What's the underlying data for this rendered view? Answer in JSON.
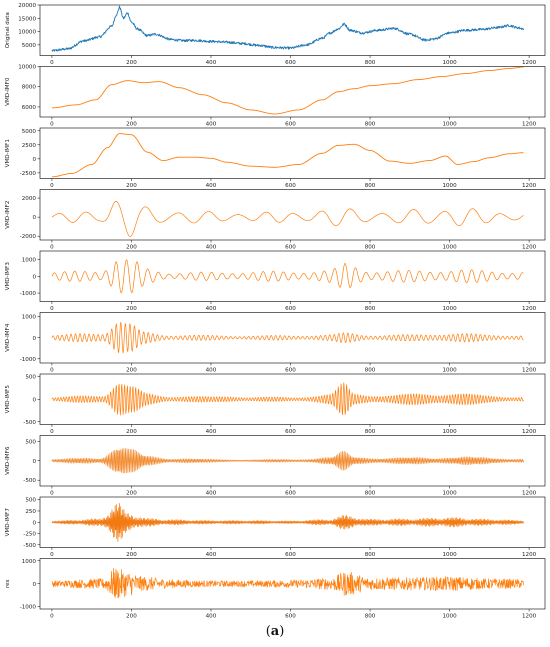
{
  "figure": {
    "caption_open": "(",
    "caption_letter": "a",
    "caption_close": ")"
  },
  "colors": {
    "original": "#1f77b4",
    "imf": "#ff7f0e",
    "imf_dark": "#e8741a"
  },
  "chart_data": [
    {
      "type": "line",
      "ylabel": "Original data",
      "xlim": [
        -30,
        1240
      ],
      "ylim": [
        1000,
        20000
      ],
      "yticks": [
        5000,
        10000,
        15000,
        20000
      ],
      "xticks": [
        0,
        200,
        400,
        600,
        800,
        1000,
        1200
      ],
      "series": [
        {
          "color": "#1f77b4",
          "kind": "trend",
          "points": [
            [
              0,
              2800
            ],
            [
              40,
              3500
            ],
            [
              80,
              6500
            ],
            [
              120,
              8000
            ],
            [
              150,
              12000
            ],
            [
              163,
              16500
            ],
            [
              170,
              19200
            ],
            [
              180,
              15000
            ],
            [
              190,
              17000
            ],
            [
              200,
              13500
            ],
            [
              215,
              11000
            ],
            [
              240,
              8500
            ],
            [
              260,
              9000
            ],
            [
              300,
              7000
            ],
            [
              330,
              6600
            ],
            [
              360,
              6700
            ],
            [
              400,
              6300
            ],
            [
              440,
              6000
            ],
            [
              480,
              5500
            ],
            [
              520,
              4800
            ],
            [
              560,
              4000
            ],
            [
              600,
              3800
            ],
            [
              640,
              5000
            ],
            [
              680,
              7500
            ],
            [
              700,
              9500
            ],
            [
              720,
              11000
            ],
            [
              735,
              12800
            ],
            [
              750,
              10500
            ],
            [
              780,
              9500
            ],
            [
              820,
              10500
            ],
            [
              860,
              11200
            ],
            [
              900,
              9000
            ],
            [
              940,
              6800
            ],
            [
              960,
              7200
            ],
            [
              1000,
              9500
            ],
            [
              1040,
              10500
            ],
            [
              1080,
              10800
            ],
            [
              1120,
              11500
            ],
            [
              1150,
              12300
            ],
            [
              1170,
              11500
            ],
            [
              1186,
              11000
            ]
          ],
          "noise": 450
        }
      ]
    },
    {
      "type": "line",
      "ylabel": "VMD-IMF0",
      "xlim": [
        -30,
        1240
      ],
      "ylim": [
        5000,
        10000
      ],
      "yticks": [
        6000,
        8000,
        10000
      ],
      "xticks": [
        0,
        200,
        400,
        600,
        800,
        1000,
        1200
      ],
      "series": [
        {
          "color": "#ff7f0e",
          "kind": "trend",
          "points": [
            [
              0,
              5900
            ],
            [
              60,
              6200
            ],
            [
              110,
              6700
            ],
            [
              150,
              8200
            ],
            [
              190,
              8600
            ],
            [
              230,
              8400
            ],
            [
              270,
              8500
            ],
            [
              320,
              7900
            ],
            [
              380,
              7200
            ],
            [
              440,
              6400
            ],
            [
              500,
              5700
            ],
            [
              560,
              5300
            ],
            [
              620,
              5700
            ],
            [
              680,
              6700
            ],
            [
              720,
              7500
            ],
            [
              760,
              7800
            ],
            [
              800,
              8100
            ],
            [
              860,
              8300
            ],
            [
              920,
              8700
            ],
            [
              980,
              9000
            ],
            [
              1040,
              9300
            ],
            [
              1100,
              9600
            ],
            [
              1150,
              9800
            ],
            [
              1186,
              9950
            ]
          ],
          "noise": 0
        }
      ]
    },
    {
      "type": "line",
      "ylabel": "VMD-IMF1",
      "xlim": [
        -30,
        1240
      ],
      "ylim": [
        -3500,
        5500
      ],
      "yticks": [
        -2500,
        0,
        2500,
        5000
      ],
      "xticks": [
        0,
        200,
        400,
        600,
        800,
        1000,
        1200
      ],
      "series": [
        {
          "color": "#ff7f0e",
          "kind": "trend",
          "points": [
            [
              0,
              -3200
            ],
            [
              50,
              -2600
            ],
            [
              100,
              -1000
            ],
            [
              140,
              2000
            ],
            [
              170,
              4500
            ],
            [
              200,
              4300
            ],
            [
              240,
              1200
            ],
            [
              280,
              -300
            ],
            [
              320,
              300
            ],
            [
              360,
              300
            ],
            [
              400,
              100
            ],
            [
              440,
              -600
            ],
            [
              500,
              -1300
            ],
            [
              560,
              -1500
            ],
            [
              620,
              -1000
            ],
            [
              680,
              1000
            ],
            [
              720,
              2400
            ],
            [
              760,
              2600
            ],
            [
              800,
              1500
            ],
            [
              850,
              -400
            ],
            [
              900,
              -800
            ],
            [
              950,
              -300
            ],
            [
              990,
              500
            ],
            [
              1020,
              -1000
            ],
            [
              1060,
              -500
            ],
            [
              1100,
              200
            ],
            [
              1150,
              900
            ],
            [
              1186,
              1100
            ]
          ],
          "noise": 0
        }
      ]
    },
    {
      "type": "line",
      "ylabel": "VMD-IMF2",
      "xlim": [
        -30,
        1240
      ],
      "ylim": [
        -2400,
        2900
      ],
      "yticks": [
        -2000,
        0,
        2000
      ],
      "xticks": [
        0,
        200,
        400,
        600,
        800,
        1000,
        1200
      ],
      "series": [
        {
          "color": "#ff7f0e",
          "kind": "osc",
          "freq": 0.085,
          "envelope": [
            [
              0,
              400
            ],
            [
              120,
              800
            ],
            [
              160,
              2500
            ],
            [
              190,
              2200
            ],
            [
              230,
              1200
            ],
            [
              300,
              800
            ],
            [
              400,
              600
            ],
            [
              500,
              500
            ],
            [
              600,
              600
            ],
            [
              700,
              900
            ],
            [
              750,
              1000
            ],
            [
              850,
              600
            ],
            [
              950,
              1000
            ],
            [
              1000,
              1200
            ],
            [
              1100,
              700
            ],
            [
              1186,
              500
            ]
          ]
        }
      ]
    },
    {
      "type": "line",
      "ylabel": "VMD-IMF3",
      "xlim": [
        -30,
        1240
      ],
      "ylim": [
        -1500,
        1500
      ],
      "yticks": [
        -1000,
        0,
        1000
      ],
      "xticks": [
        0,
        200,
        400,
        600,
        800,
        1000,
        1200
      ],
      "series": [
        {
          "color": "#ff7f0e",
          "kind": "osc",
          "freq": 0.24,
          "envelope": [
            [
              0,
              250
            ],
            [
              120,
              400
            ],
            [
              165,
              1300
            ],
            [
              200,
              1000
            ],
            [
              240,
              500
            ],
            [
              300,
              250
            ],
            [
              400,
              250
            ],
            [
              500,
              300
            ],
            [
              600,
              300
            ],
            [
              700,
              400
            ],
            [
              740,
              800
            ],
            [
              800,
              400
            ],
            [
              900,
              350
            ],
            [
              1000,
              450
            ],
            [
              1100,
              350
            ],
            [
              1186,
              300
            ]
          ]
        }
      ]
    },
    {
      "type": "line",
      "ylabel": "VMD-IMF4",
      "xlim": [
        -30,
        1240
      ],
      "ylim": [
        -1200,
        1200
      ],
      "yticks": [
        -1000,
        0,
        1000
      ],
      "xticks": [
        0,
        200,
        400,
        600,
        800,
        1000,
        1200
      ],
      "series": [
        {
          "color": "#ff7f0e",
          "kind": "osc",
          "freq": 0.55,
          "envelope": [
            [
              0,
              120
            ],
            [
              130,
              300
            ],
            [
              165,
              1000
            ],
            [
              195,
              700
            ],
            [
              230,
              300
            ],
            [
              300,
              150
            ],
            [
              400,
              120
            ],
            [
              500,
              100
            ],
            [
              600,
              120
            ],
            [
              700,
              150
            ],
            [
              740,
              250
            ],
            [
              800,
              150
            ],
            [
              900,
              150
            ],
            [
              1000,
              250
            ],
            [
              1100,
              150
            ],
            [
              1186,
              130
            ]
          ]
        }
      ]
    },
    {
      "type": "line",
      "ylabel": "VMD-IMF5",
      "xlim": [
        -30,
        1240
      ],
      "ylim": [
        -560,
        560
      ],
      "yticks": [
        -500,
        0,
        500
      ],
      "xticks": [
        0,
        200,
        400,
        600,
        800,
        1000,
        1200
      ],
      "series": [
        {
          "color": "#ff7f0e",
          "kind": "osc",
          "freq": 0.9,
          "envelope": [
            [
              0,
              40
            ],
            [
              130,
              120
            ],
            [
              165,
              480
            ],
            [
              200,
              300
            ],
            [
              240,
              150
            ],
            [
              300,
              80
            ],
            [
              400,
              60
            ],
            [
              450,
              90
            ],
            [
              500,
              50
            ],
            [
              600,
              50
            ],
            [
              700,
              120
            ],
            [
              735,
              380
            ],
            [
              760,
              150
            ],
            [
              850,
              100
            ],
            [
              950,
              150
            ],
            [
              1000,
              160
            ],
            [
              1100,
              90
            ],
            [
              1186,
              60
            ]
          ]
        }
      ]
    },
    {
      "type": "line",
      "ylabel": "VMD-IMF6",
      "xlim": [
        -30,
        1240
      ],
      "ylim": [
        -650,
        650
      ],
      "yticks": [
        -500,
        0,
        500
      ],
      "xticks": [
        0,
        200,
        400,
        600,
        800,
        1000,
        1200
      ],
      "series": [
        {
          "color": "#f28a2e",
          "kind": "osc",
          "freq": 1.6,
          "envelope": [
            [
              0,
              40
            ],
            [
              120,
              100
            ],
            [
              165,
              500
            ],
            [
              200,
              300
            ],
            [
              240,
              150
            ],
            [
              300,
              80
            ],
            [
              400,
              40
            ],
            [
              500,
              30
            ],
            [
              600,
              40
            ],
            [
              700,
              100
            ],
            [
              735,
              250
            ],
            [
              760,
              130
            ],
            [
              850,
              80
            ],
            [
              950,
              100
            ],
            [
              1000,
              120
            ],
            [
              1100,
              90
            ],
            [
              1186,
              60
            ]
          ]
        }
      ]
    },
    {
      "type": "line",
      "ylabel": "VMD-IMF7",
      "xlim": [
        -30,
        1240
      ],
      "ylim": [
        -560,
        560
      ],
      "yticks": [
        -500,
        -250,
        0,
        250,
        500
      ],
      "xticks": [
        0,
        200,
        400,
        600,
        800,
        1000,
        1200
      ],
      "series": [
        {
          "color": "#f27a12",
          "kind": "burst",
          "freq": 2.3,
          "envelope": [
            [
              0,
              30
            ],
            [
              120,
              80
            ],
            [
              165,
              450
            ],
            [
              190,
              220
            ],
            [
              240,
              90
            ],
            [
              300,
              60
            ],
            [
              400,
              40
            ],
            [
              500,
              40
            ],
            [
              600,
              30
            ],
            [
              700,
              70
            ],
            [
              735,
              160
            ],
            [
              800,
              70
            ],
            [
              900,
              80
            ],
            [
              1000,
              110
            ],
            [
              1100,
              70
            ],
            [
              1186,
              40
            ]
          ]
        }
      ]
    },
    {
      "type": "line",
      "ylabel": "res",
      "xlim": [
        -30,
        1240
      ],
      "ylim": [
        -1100,
        1100
      ],
      "yticks": [
        -1000,
        0,
        1000
      ],
      "xticks": [
        0,
        200,
        400,
        600,
        800,
        1000,
        1200
      ],
      "series": [
        {
          "color": "#ff7f0e",
          "kind": "noise",
          "envelope": [
            [
              0,
              150
            ],
            [
              130,
              250
            ],
            [
              160,
              800
            ],
            [
              190,
              600
            ],
            [
              230,
              350
            ],
            [
              300,
              200
            ],
            [
              400,
              150
            ],
            [
              500,
              150
            ],
            [
              600,
              180
            ],
            [
              700,
              280
            ],
            [
              740,
              600
            ],
            [
              800,
              300
            ],
            [
              900,
              300
            ],
            [
              1000,
              350
            ],
            [
              1100,
              250
            ],
            [
              1186,
              220
            ]
          ]
        }
      ]
    }
  ]
}
